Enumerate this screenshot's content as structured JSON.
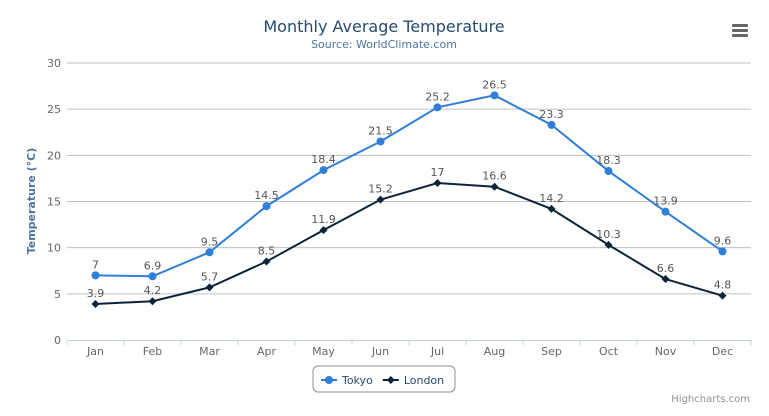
{
  "chart_data": {
    "type": "line",
    "title": "Monthly Average Temperature",
    "subtitle": "Source: WorldClimate.com",
    "xlabel": "",
    "ylabel": "Temperature (°C)",
    "categories": [
      "Jan",
      "Feb",
      "Mar",
      "Apr",
      "May",
      "Jun",
      "Jul",
      "Aug",
      "Sep",
      "Oct",
      "Nov",
      "Dec"
    ],
    "ylim": [
      0,
      30
    ],
    "yticks": [
      0,
      5,
      10,
      15,
      20,
      25,
      30
    ],
    "grid": true,
    "legend_position": "bottom-center",
    "series": [
      {
        "name": "Tokyo",
        "color": "#2f7ed8",
        "marker": "circle",
        "values": [
          7,
          6.9,
          9.5,
          14.5,
          18.4,
          21.5,
          25.2,
          26.5,
          23.3,
          18.3,
          13.9,
          9.6
        ]
      },
      {
        "name": "London",
        "color": "#0d233a",
        "marker": "diamond",
        "values": [
          3.9,
          4.2,
          5.7,
          8.5,
          11.9,
          15.2,
          17,
          16.6,
          14.2,
          10.3,
          6.6,
          4.8
        ]
      }
    ]
  },
  "menu_icon": "hamburger-menu-icon",
  "credit": "Highcharts.com"
}
